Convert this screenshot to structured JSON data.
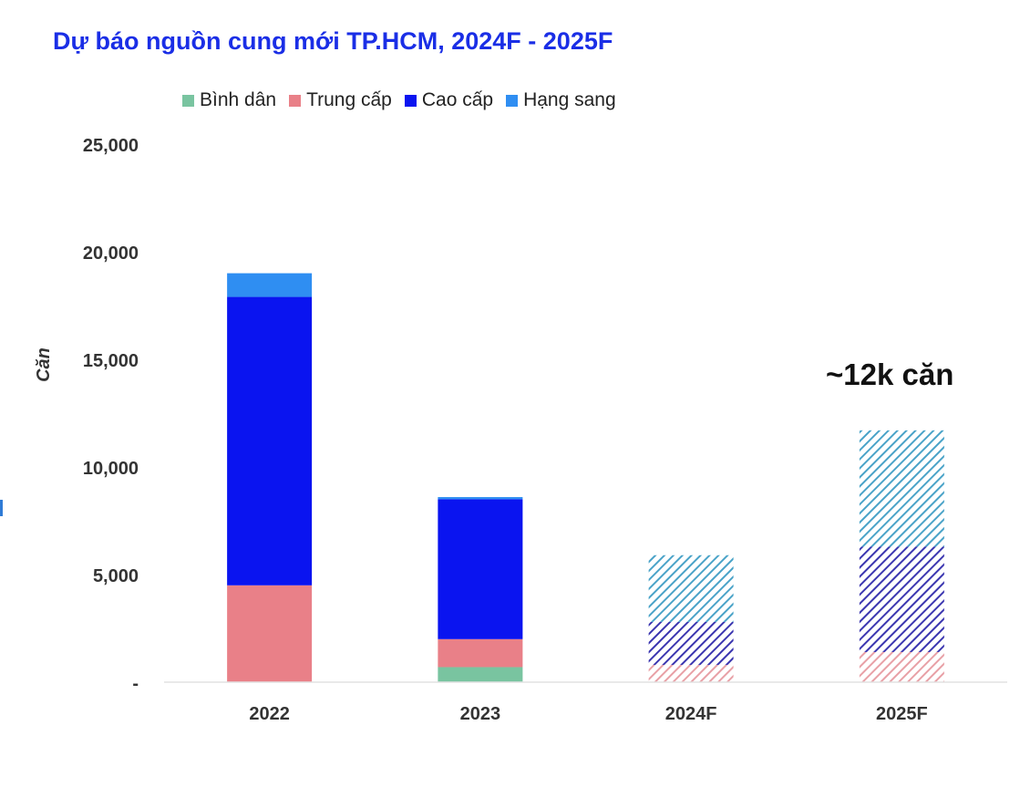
{
  "chart_data": {
    "type": "bar",
    "stacked": true,
    "title": "Dự báo nguồn cung mới TP.HCM, 2024F - 2025F",
    "ylabel": "Căn",
    "xlabel": "",
    "ylim": [
      0,
      25000
    ],
    "yticks": [
      0,
      5000,
      10000,
      15000,
      20000,
      25000
    ],
    "ytick_labels": [
      "-",
      "5,000",
      "10,000",
      "15,000",
      "20,000",
      "25,000"
    ],
    "categories": [
      "2022",
      "2023",
      "2024F",
      "2025F"
    ],
    "forecast_categories": [
      "2024F",
      "2025F"
    ],
    "series": [
      {
        "name": "Bình dân",
        "color": "#79c4a0",
        "values": [
          0,
          700,
          0,
          0
        ]
      },
      {
        "name": "Trung cấp",
        "color": "#e98088",
        "values": [
          4500,
          1300,
          800,
          1400
        ]
      },
      {
        "name": "Cao cấp",
        "color": "#0a14f0",
        "values": [
          13400,
          6500,
          2000,
          4900
        ]
      },
      {
        "name": "Hạng sang",
        "color": "#2f8ef2",
        "values": [
          1100,
          100,
          3100,
          5400
        ]
      }
    ],
    "forecast_colors": {
      "Trung cấp": "#e8a0a6",
      "Cao cấp": "#3b36b0",
      "Hạng sang": "#4aa3c8"
    },
    "annotation": "~12k căn",
    "legend_position": "top",
    "grid": false
  }
}
